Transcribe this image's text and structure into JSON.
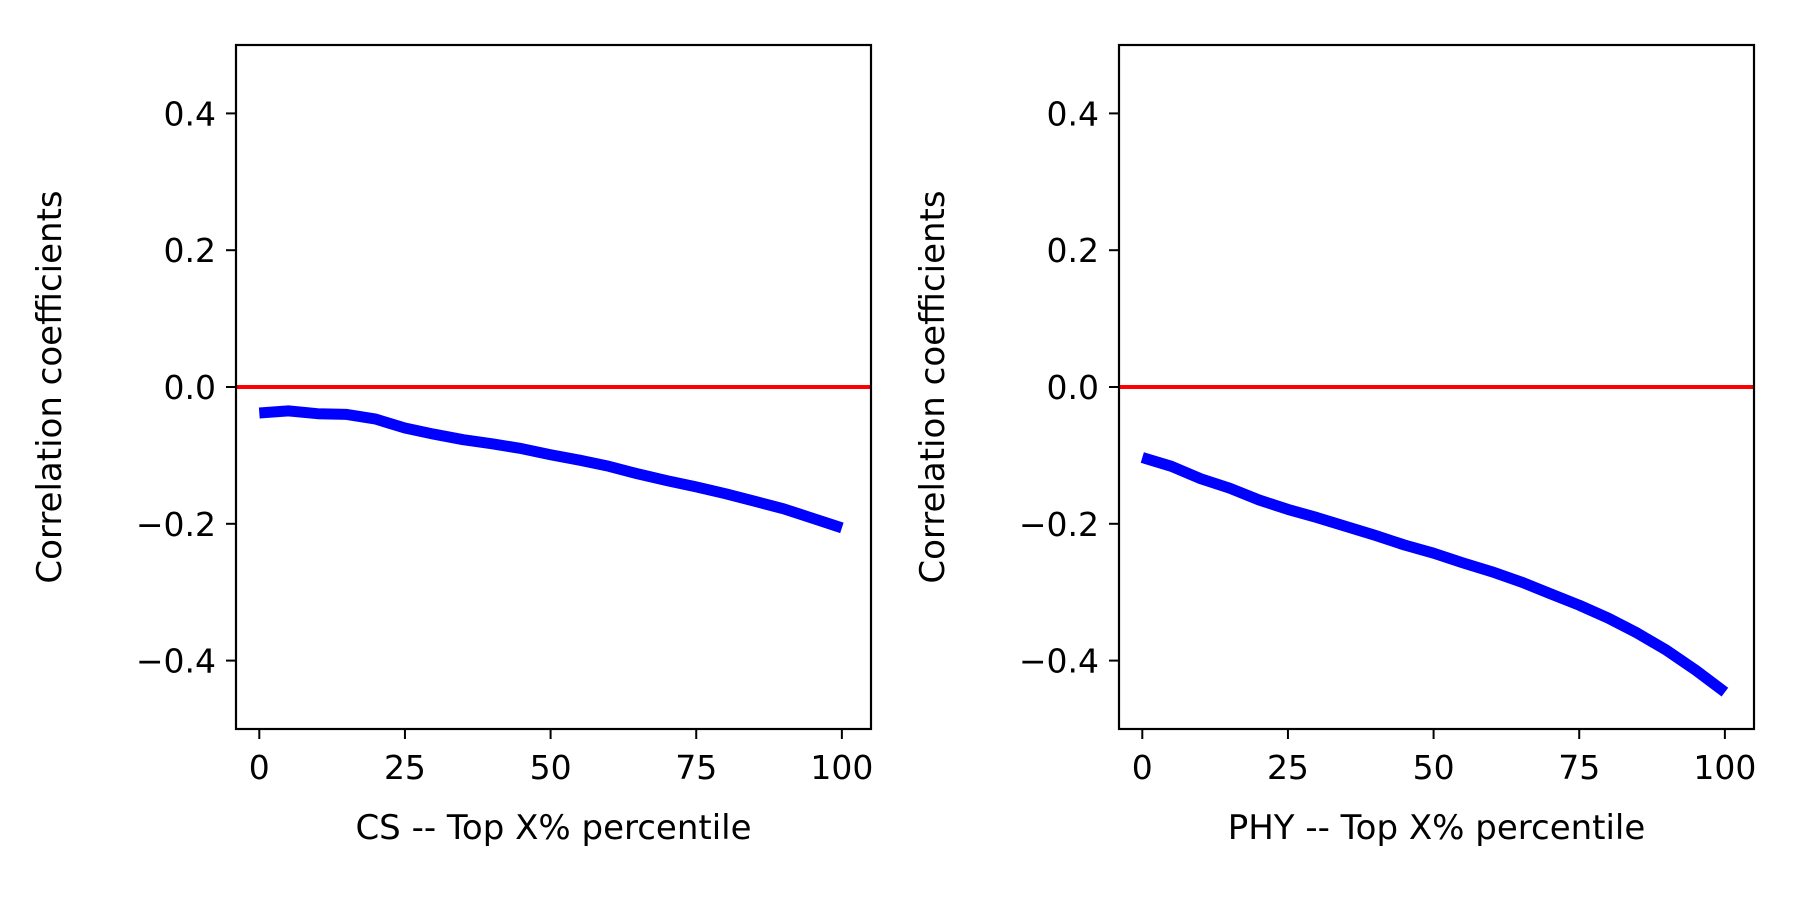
{
  "chart_data": [
    {
      "type": "line",
      "title": "",
      "xlabel": "CS -- Top X% percentile",
      "ylabel": "Correlation coefficients",
      "xlim": [
        -4,
        105
      ],
      "ylim": [
        -0.5,
        0.5
      ],
      "xticks": [
        0,
        25,
        50,
        75,
        100
      ],
      "xtick_labels": [
        "0",
        "25",
        "50",
        "75",
        "100"
      ],
      "yticks": [
        -0.4,
        -0.2,
        0.0,
        0.2,
        0.4
      ],
      "ytick_labels": [
        "−0.4",
        "−0.2",
        "0.0",
        "0.2",
        "0.4"
      ],
      "grid": false,
      "reference_line": {
        "y": 0.0,
        "color": "#ff0000"
      },
      "series": [
        {
          "name": "CS",
          "color": "#0000ff",
          "x": [
            0,
            5,
            10,
            15,
            20,
            25,
            30,
            35,
            40,
            45,
            50,
            55,
            60,
            65,
            70,
            75,
            80,
            85,
            90,
            95,
            100
          ],
          "y": [
            -0.038,
            -0.035,
            -0.039,
            -0.04,
            -0.047,
            -0.06,
            -0.069,
            -0.077,
            -0.083,
            -0.09,
            -0.099,
            -0.107,
            -0.116,
            -0.127,
            -0.137,
            -0.146,
            -0.156,
            -0.167,
            -0.178,
            -0.192,
            -0.206
          ]
        }
      ]
    },
    {
      "type": "line",
      "title": "",
      "xlabel": "PHY -- Top X% percentile",
      "ylabel": "Correlation coefficients",
      "xlim": [
        -4,
        105
      ],
      "ylim": [
        -0.5,
        0.5
      ],
      "xticks": [
        0,
        25,
        50,
        75,
        100
      ],
      "xtick_labels": [
        "0",
        "25",
        "50",
        "75",
        "100"
      ],
      "yticks": [
        -0.4,
        -0.2,
        0.0,
        0.2,
        0.4
      ],
      "ytick_labels": [
        "−0.4",
        "−0.2",
        "0.0",
        "0.2",
        "0.4"
      ],
      "grid": false,
      "reference_line": {
        "y": 0.0,
        "color": "#ff0000"
      },
      "series": [
        {
          "name": "PHY",
          "color": "#0000ff",
          "x": [
            0,
            5,
            10,
            15,
            20,
            25,
            30,
            35,
            40,
            45,
            50,
            55,
            60,
            65,
            70,
            75,
            80,
            85,
            90,
            95,
            100
          ],
          "y": [
            -0.103,
            -0.116,
            -0.134,
            -0.148,
            -0.165,
            -0.179,
            -0.191,
            -0.204,
            -0.217,
            -0.231,
            -0.243,
            -0.257,
            -0.27,
            -0.285,
            -0.302,
            -0.319,
            -0.338,
            -0.36,
            -0.385,
            -0.414,
            -0.446
          ]
        }
      ]
    }
  ]
}
